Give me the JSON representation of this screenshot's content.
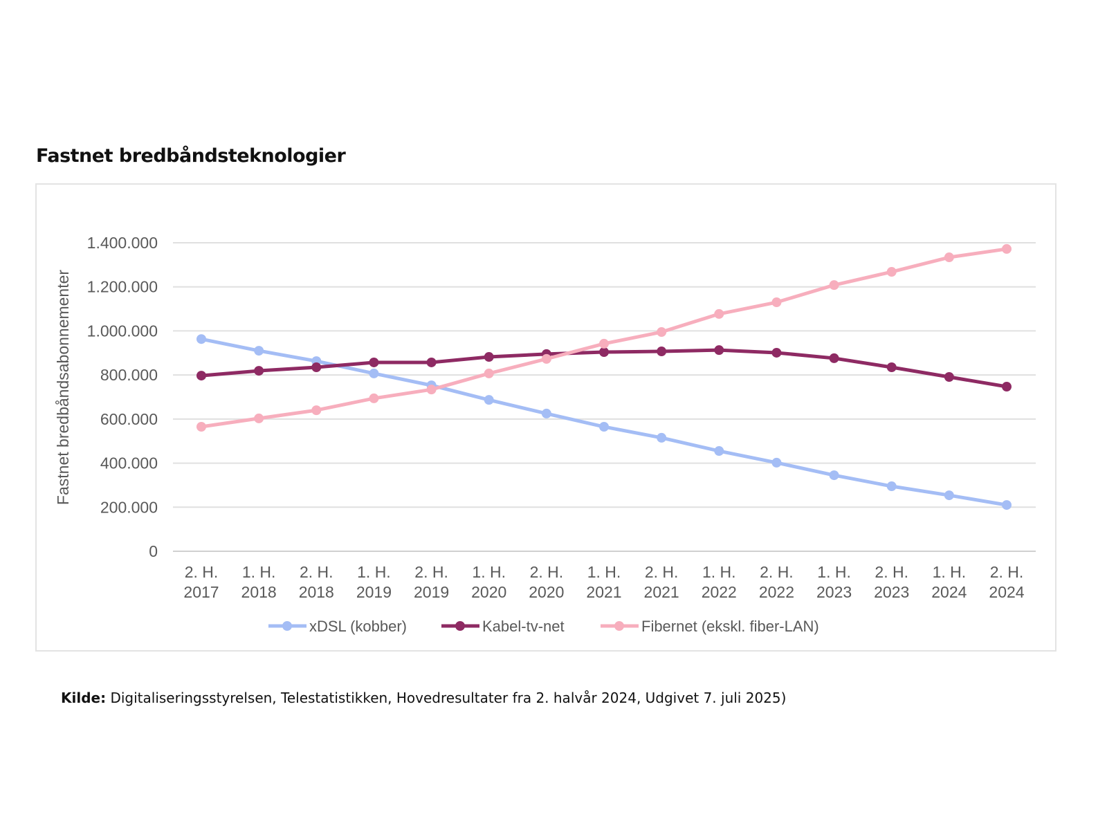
{
  "title": "Fastnet bredbåndsteknologier",
  "source": {
    "label": "Kilde:",
    "text": "Digitaliseringsstyrelsen, Telestatistikken, Hovedresultater fra 2. halvår 2024, Udgivet 7. juli 2025)"
  },
  "chart_data": {
    "type": "line",
    "title": "Fastnet bredbåndsteknologier",
    "xlabel": "",
    "ylabel": "Fastnet bredbåndsabonnementer",
    "ylim": [
      0,
      1400000
    ],
    "yticks": [
      0,
      200000,
      400000,
      600000,
      800000,
      1000000,
      1200000,
      1400000
    ],
    "ytick_labels": [
      "0",
      "200.000",
      "400.000",
      "600.000",
      "800.000",
      "1.000.000",
      "1.200.000",
      "1.400.000"
    ],
    "grid": true,
    "legend_position": "bottom",
    "categories": [
      [
        "2. H.",
        "2017"
      ],
      [
        "1. H.",
        "2018"
      ],
      [
        "2. H.",
        "2018"
      ],
      [
        "1. H.",
        "2019"
      ],
      [
        "2. H.",
        "2019"
      ],
      [
        "1. H.",
        "2020"
      ],
      [
        "2. H.",
        "2020"
      ],
      [
        "1. H.",
        "2021"
      ],
      [
        "2. H.",
        "2021"
      ],
      [
        "1. H.",
        "2022"
      ],
      [
        "2. H.",
        "2022"
      ],
      [
        "1. H.",
        "2023"
      ],
      [
        "2. H.",
        "2023"
      ],
      [
        "1. H.",
        "2024"
      ],
      [
        "2. H.",
        "2024"
      ]
    ],
    "series": [
      {
        "name": "xDSL (kobber)",
        "color": "#a4bdf5",
        "values": [
          963000,
          910000,
          863000,
          807000,
          753000,
          687000,
          625000,
          565000,
          515000,
          455000,
          402000,
          345000,
          295000,
          254000,
          210000
        ]
      },
      {
        "name": "Kabel-tv-net",
        "color": "#8e2a63",
        "values": [
          797000,
          819000,
          835000,
          857000,
          857000,
          882000,
          895000,
          904000,
          907000,
          913000,
          901000,
          876000,
          835000,
          791000,
          747000
        ]
      },
      {
        "name": "Fibernet (ekskl. fiber-LAN)",
        "color": "#f7aebd",
        "values": [
          565000,
          603000,
          640000,
          694000,
          734000,
          807000,
          873000,
          942000,
          995000,
          1077000,
          1130000,
          1208000,
          1268000,
          1334000,
          1372000
        ]
      }
    ]
  }
}
